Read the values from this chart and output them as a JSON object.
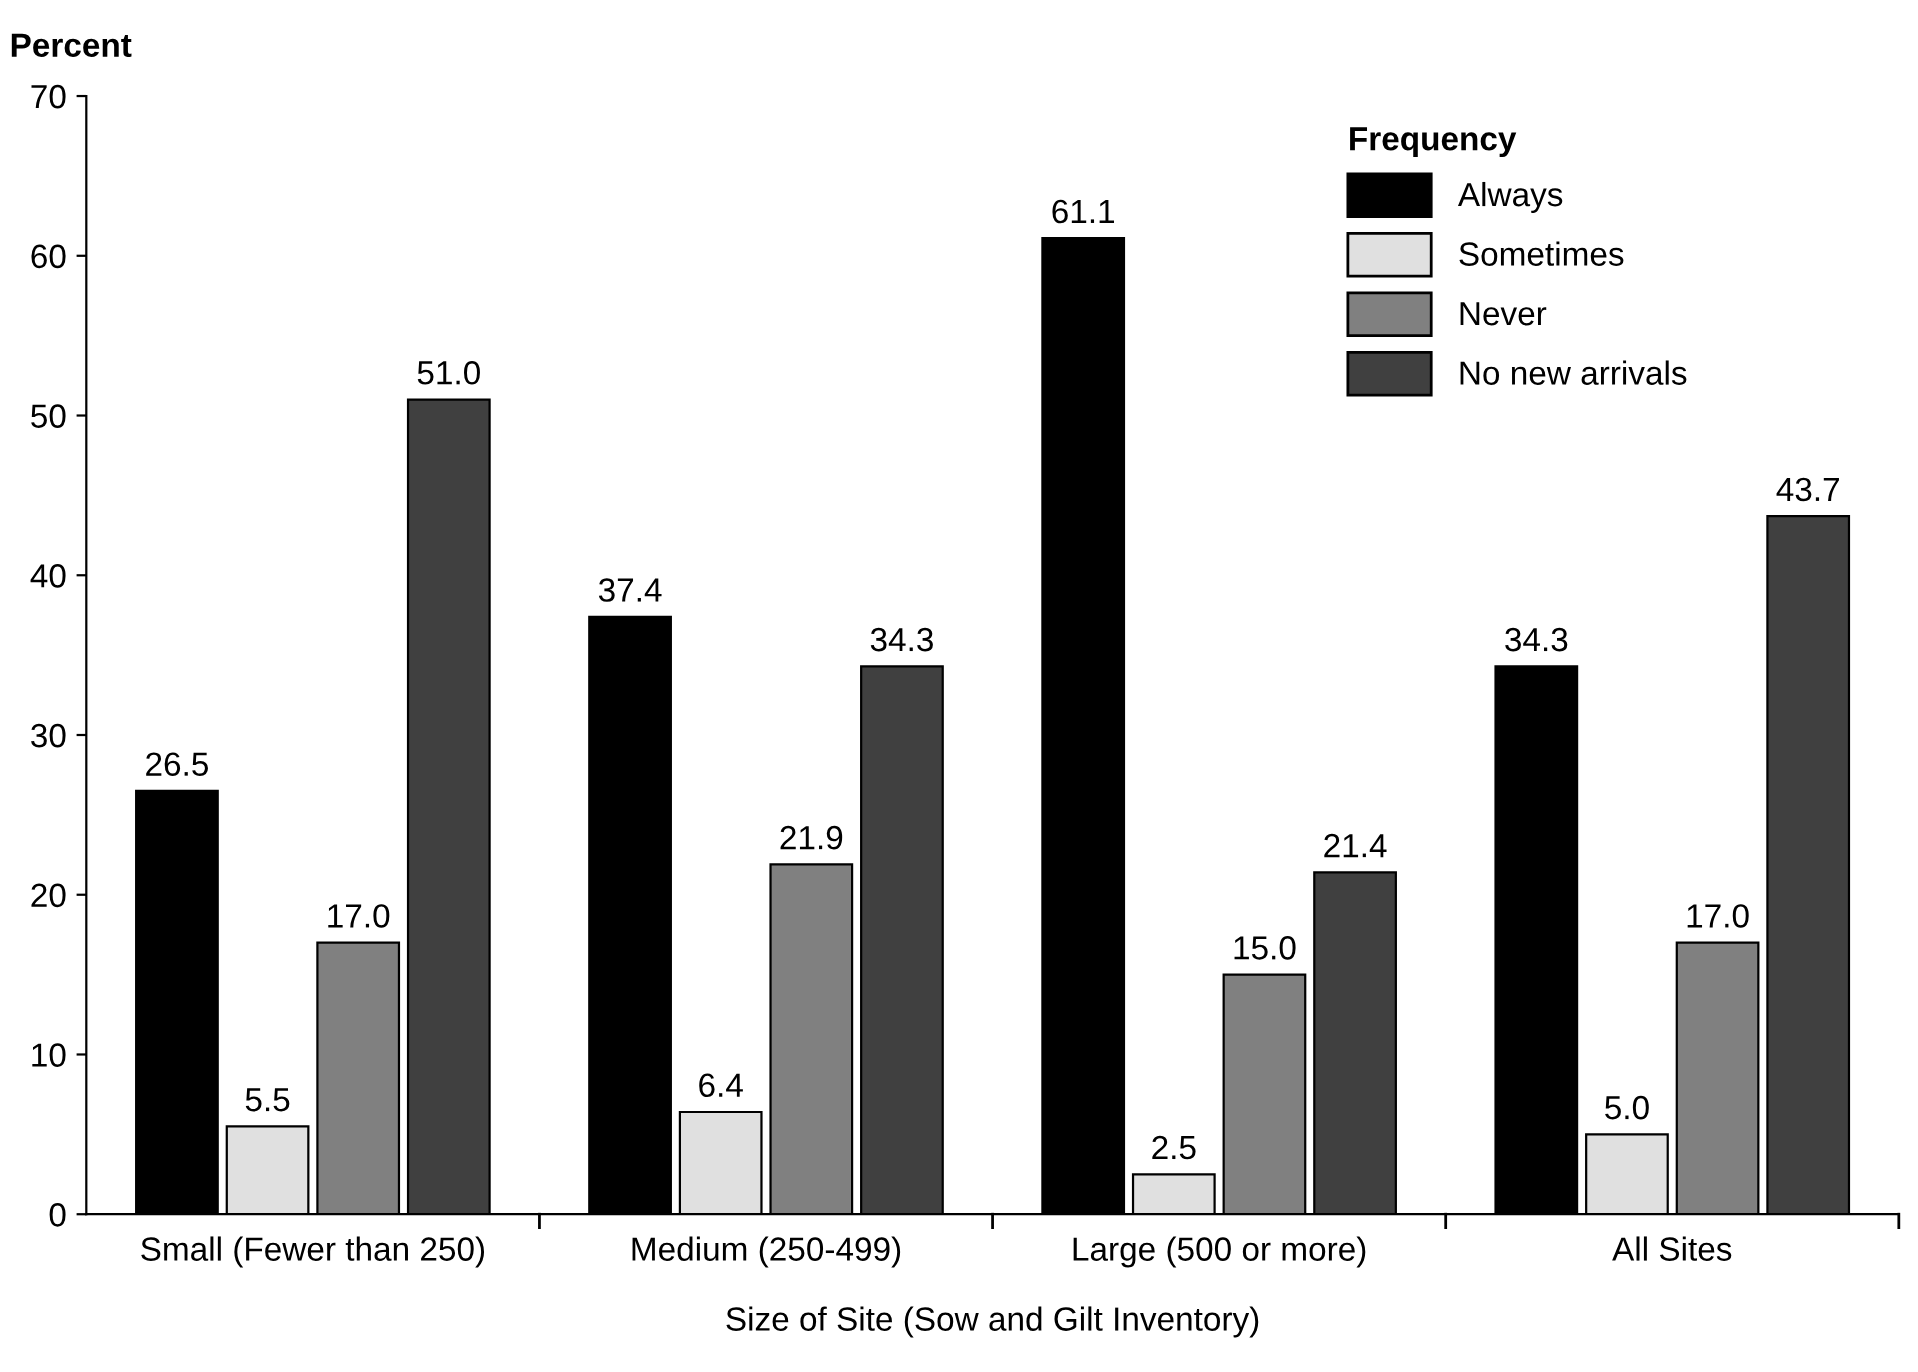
{
  "chart_data": {
    "type": "bar",
    "ylabel": "Percent",
    "xlabel": "Size of Site (Sow and Gilt Inventory)",
    "legend_title": "Frequency",
    "categories": [
      "Small (Fewer than 250)",
      "Medium (250-499)",
      "Large (500 or more)",
      "All Sites"
    ],
    "series": [
      {
        "name": "Always",
        "color": "#000000",
        "values": [
          26.5,
          37.4,
          61.1,
          34.3
        ],
        "value_labels": [
          "26.5",
          "37.4",
          "61.1",
          "34.3"
        ]
      },
      {
        "name": "Sometimes",
        "color": "#e0e0e0",
        "values": [
          5.5,
          6.4,
          2.5,
          5
        ],
        "value_labels": [
          "5.5",
          "6.4",
          "2.5",
          "5.0"
        ]
      },
      {
        "name": "Never",
        "color": "#808080",
        "values": [
          17,
          21.9,
          15,
          17
        ],
        "value_labels": [
          "17.0",
          "21.9",
          "15.0",
          "17.0"
        ]
      },
      {
        "name": "No new arrivals",
        "color": "#404040",
        "values": [
          51,
          34.3,
          21.4,
          43.7
        ],
        "value_labels": [
          "51.0",
          "34.3",
          "21.4",
          "43.7"
        ]
      }
    ],
    "ylim": [
      0,
      70
    ],
    "yticks": [
      0,
      10,
      20,
      30,
      40,
      50,
      60,
      70
    ],
    "grid": false,
    "legend": "top right"
  }
}
